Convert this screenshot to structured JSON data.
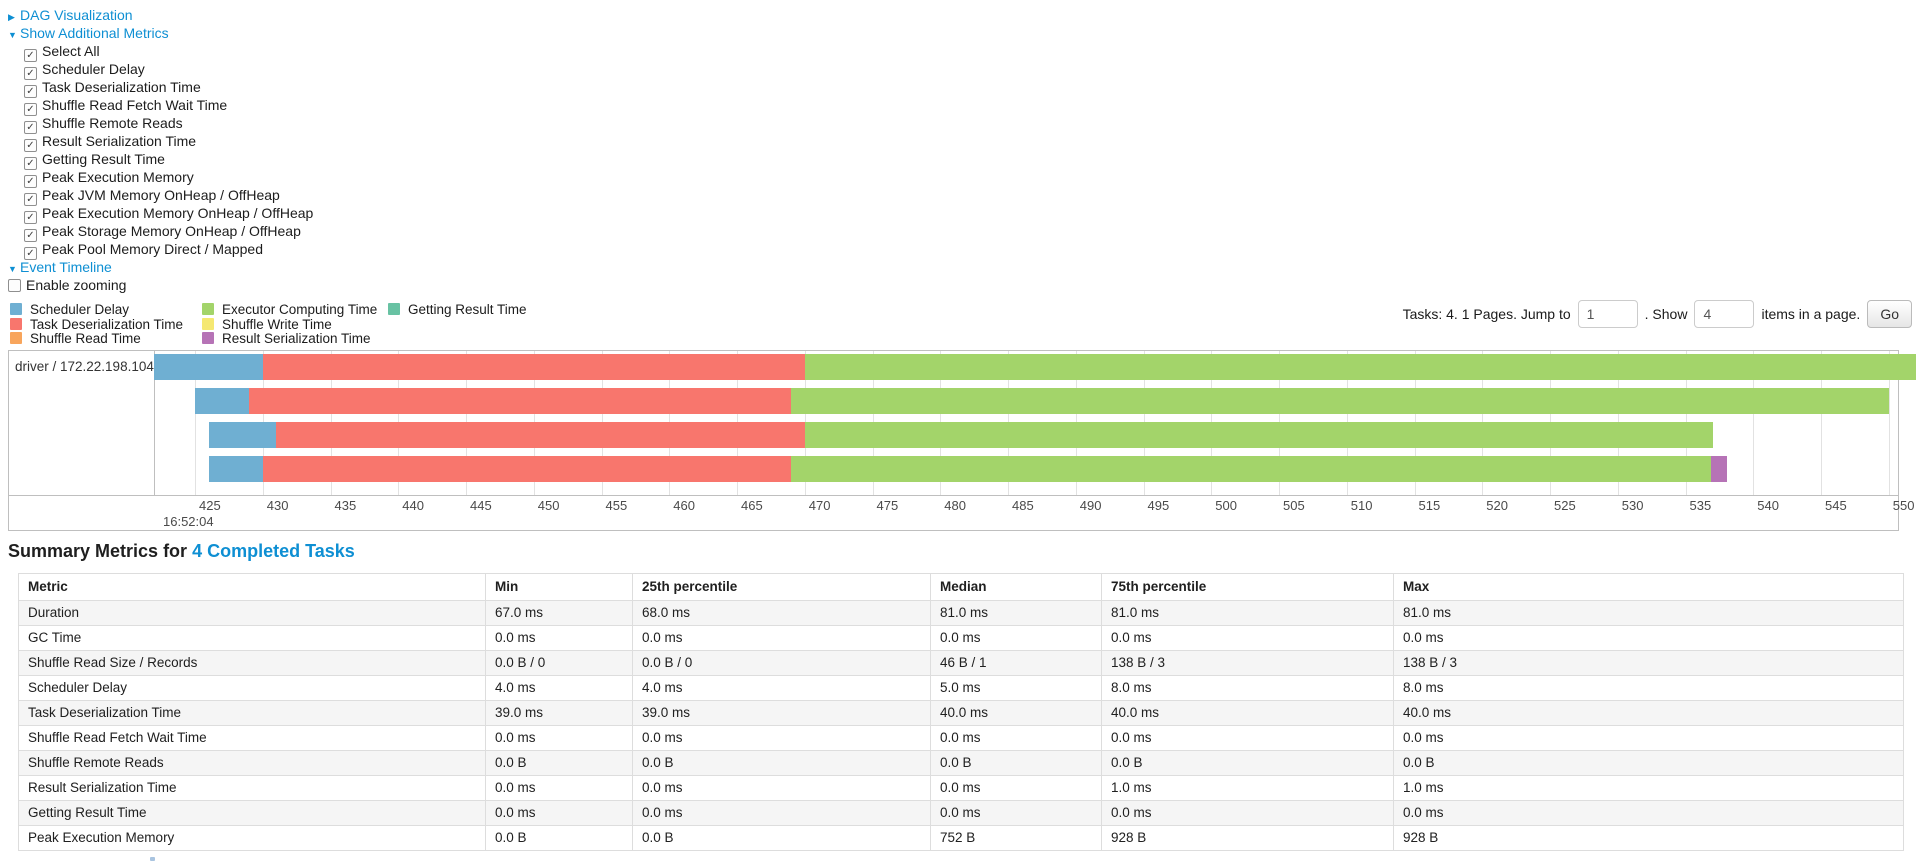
{
  "colors": {
    "scheduler_delay": "#6FAFD2",
    "task_deserialization": "#F8766D",
    "shuffle_read": "#F8A55C",
    "executor_computing": "#A3D46A",
    "shuffle_write": "#F5E872",
    "result_serialization": "#B673B6",
    "getting_result": "#68C2A3",
    "link": "#0e8fd3"
  },
  "controls": {
    "dag_label": "DAG Visualization",
    "metrics_label": "Show Additional Metrics",
    "metric_items": [
      {
        "label": "Select All",
        "checked": true
      },
      {
        "label": "Scheduler Delay",
        "checked": true
      },
      {
        "label": "Task Deserialization Time",
        "checked": true
      },
      {
        "label": "Shuffle Read Fetch Wait Time",
        "checked": true
      },
      {
        "label": "Shuffle Remote Reads",
        "checked": true
      },
      {
        "label": "Result Serialization Time",
        "checked": true
      },
      {
        "label": "Getting Result Time",
        "checked": true
      },
      {
        "label": "Peak Execution Memory",
        "checked": true
      },
      {
        "label": "Peak JVM Memory OnHeap / OffHeap",
        "checked": true
      },
      {
        "label": "Peak Execution Memory OnHeap / OffHeap",
        "checked": true
      },
      {
        "label": "Peak Storage Memory OnHeap / OffHeap",
        "checked": true
      },
      {
        "label": "Peak Pool Memory Direct / Mapped",
        "checked": true
      }
    ],
    "event_timeline_label": "Event Timeline",
    "enable_zooming": {
      "label": "Enable zooming",
      "checked": false
    }
  },
  "legend": {
    "columns": [
      [
        {
          "label": "Scheduler Delay",
          "metric": "scheduler_delay"
        },
        {
          "label": "Task Deserialization Time",
          "metric": "task_deserialization"
        },
        {
          "label": "Shuffle Read Time",
          "metric": "shuffle_read"
        }
      ],
      [
        {
          "label": "Executor Computing Time",
          "metric": "executor_computing"
        },
        {
          "label": "Shuffle Write Time",
          "metric": "shuffle_write"
        },
        {
          "label": "Result Serialization Time",
          "metric": "result_serialization"
        }
      ],
      [
        {
          "label": "Getting Result Time",
          "metric": "getting_result"
        }
      ]
    ]
  },
  "pagination": {
    "tasks_text": "Tasks: 4. 1 Pages. Jump to",
    "jump_value": "1",
    "show_text": ". Show",
    "show_value": "4",
    "items_text": "items in a page.",
    "go_label": "Go"
  },
  "chart_data": {
    "type": "timeline",
    "title": "Event Timeline",
    "row_label": "driver / 172.22.198.104",
    "x_axis": {
      "ticks": [
        425,
        430,
        435,
        440,
        445,
        450,
        455,
        460,
        465,
        470,
        475,
        480,
        485,
        490,
        495,
        500,
        505,
        510,
        515,
        520,
        525,
        530,
        535,
        540,
        545,
        550
      ],
      "base_time_label": "16:52:04",
      "unit": "ms"
    },
    "tasks": [
      {
        "segments": [
          {
            "metric": "scheduler_delay",
            "from": 422,
            "to": 430
          },
          {
            "metric": "task_deserialization",
            "from": 430,
            "to": 470
          },
          {
            "metric": "executor_computing",
            "from": 470,
            "to": 552
          }
        ]
      },
      {
        "segments": [
          {
            "metric": "scheduler_delay",
            "from": 425,
            "to": 429
          },
          {
            "metric": "task_deserialization",
            "from": 429,
            "to": 469
          },
          {
            "metric": "executor_computing",
            "from": 469,
            "to": 550
          }
        ]
      },
      {
        "segments": [
          {
            "metric": "scheduler_delay",
            "from": 426,
            "to": 431
          },
          {
            "metric": "task_deserialization",
            "from": 431,
            "to": 470
          },
          {
            "metric": "executor_computing",
            "from": 470,
            "to": 537
          }
        ]
      },
      {
        "segments": [
          {
            "metric": "scheduler_delay",
            "from": 426,
            "to": 430
          },
          {
            "metric": "task_deserialization",
            "from": 430,
            "to": 469
          },
          {
            "metric": "executor_computing",
            "from": 469,
            "to": 536.9
          },
          {
            "metric": "result_serialization",
            "from": 536.9,
            "to": 538.1
          }
        ]
      }
    ]
  },
  "summary": {
    "heading_prefix": "Summary Metrics for ",
    "heading_link": "4 Completed Tasks",
    "table": {
      "headers": [
        "Metric",
        "Min",
        "25th percentile",
        "Median",
        "75th percentile",
        "Max"
      ],
      "rows": [
        {
          "metric": "Duration",
          "values": [
            "67.0 ms",
            "68.0 ms",
            "81.0 ms",
            "81.0 ms",
            "81.0 ms"
          ]
        },
        {
          "metric": "GC Time",
          "values": [
            "0.0 ms",
            "0.0 ms",
            "0.0 ms",
            "0.0 ms",
            "0.0 ms"
          ]
        },
        {
          "metric": "Shuffle Read Size / Records",
          "values": [
            "0.0 B / 0",
            "0.0 B / 0",
            "46 B / 1",
            "138 B / 3",
            "138 B / 3"
          ]
        },
        {
          "metric": "Scheduler Delay",
          "values": [
            "4.0 ms",
            "4.0 ms",
            "5.0 ms",
            "8.0 ms",
            "8.0 ms"
          ]
        },
        {
          "metric": "Task Deserialization Time",
          "values": [
            "39.0 ms",
            "39.0 ms",
            "40.0 ms",
            "40.0 ms",
            "40.0 ms"
          ]
        },
        {
          "metric": "Shuffle Read Fetch Wait Time",
          "values": [
            "0.0 ms",
            "0.0 ms",
            "0.0 ms",
            "0.0 ms",
            "0.0 ms"
          ]
        },
        {
          "metric": "Shuffle Remote Reads",
          "values": [
            "0.0 B",
            "0.0 B",
            "0.0 B",
            "0.0 B",
            "0.0 B"
          ]
        },
        {
          "metric": "Result Serialization Time",
          "values": [
            "0.0 ms",
            "0.0 ms",
            "0.0 ms",
            "1.0 ms",
            "1.0 ms"
          ]
        },
        {
          "metric": "Getting Result Time",
          "values": [
            "0.0 ms",
            "0.0 ms",
            "0.0 ms",
            "0.0 ms",
            "0.0 ms"
          ]
        },
        {
          "metric": "Peak Execution Memory",
          "values": [
            "0.0 B",
            "0.0 B",
            "752 B",
            "928 B",
            "928 B"
          ]
        }
      ]
    }
  }
}
